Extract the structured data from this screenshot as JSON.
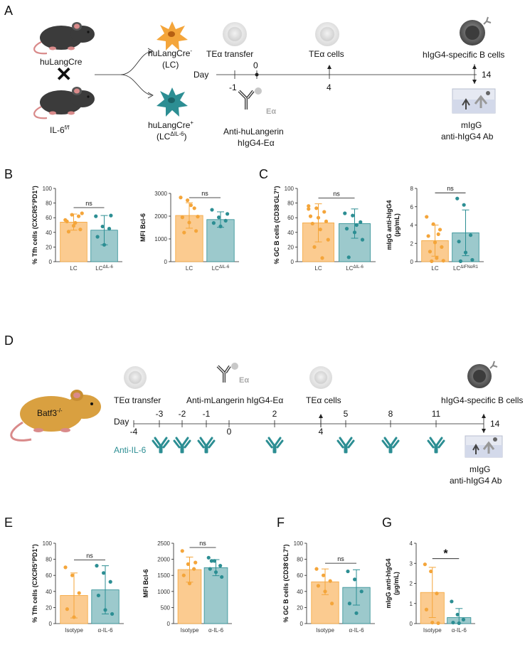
{
  "panel_labels": [
    "A",
    "B",
    "C",
    "D",
    "E",
    "F",
    "G"
  ],
  "colors": {
    "orange": "#F4A53A",
    "orange_fill": "#FBCB90",
    "teal": "#2C8E93",
    "teal_fill": "#9CC9CC",
    "mouse_black": "#3b3b3b",
    "mouse_batf3": "#D9A040",
    "mouse_tail": "#D98A8A"
  },
  "panelA": {
    "mouse1_label": "huLangCre",
    "cross_symbol": "✕",
    "mouse2_label_main": "IL-6",
    "mouse2_label_sup": "f/f",
    "lc_line1": "huLangCre",
    "lc_line1_sup": "-",
    "lc_line2": "(LC)",
    "lciko_line1": "huLangCre",
    "lciko_line1_sup": "+",
    "lciko_line2_a": "(LC",
    "lciko_line2_sup": "ΔIL-6",
    "lciko_line2_b": ")",
    "timeline": {
      "day_label": "Day",
      "events_top": [
        {
          "day": "0",
          "label": "TEα transfer"
        },
        {
          "day": "",
          "label": "TEα cells"
        },
        {
          "day": "",
          "label": "hIgG4-specific B cells"
        }
      ],
      "ticks_below": [
        "-1",
        "4"
      ],
      "tick_above_end": "0",
      "end_day": "14",
      "antibody_text": "Eα",
      "injection_label_line1": "Anti-huLangerin",
      "injection_label_line2": "hIgG4-Eα",
      "readout_line1": "mIgG",
      "readout_line2": "anti-hIgG4 Ab"
    }
  },
  "panelD": {
    "mouse_label": "Batf3",
    "mouse_label_sup": "-/-",
    "event_teα_transfer": "TEα transfer",
    "event_anti": "Anti-mLangerin hIgG4-Eα",
    "event_antibody_text": "Eα",
    "event_tea_cells": "TEα cells",
    "event_bcells": "hIgG4-specific B cells",
    "day_label": "Day",
    "days_above": [
      "-3",
      "-2",
      "-1",
      "2",
      "5",
      "8",
      "11"
    ],
    "days_below": [
      "-4",
      "0",
      "4"
    ],
    "end_day": "14",
    "anti_il6_label": "Anti-IL-6",
    "readout_line1": "mIgG",
    "readout_line2": "anti-hIgG4 Ab"
  },
  "chart_data": [
    {
      "panel": "B",
      "type": "bar",
      "categories": [
        "LC",
        "LC"
      ],
      "category_sup": [
        "",
        "ΔIL-6"
      ],
      "ylabel": "% Tfh cells (CXCR5+PD1+)",
      "ylabel_parts": [
        "% Tfh cells (CXCR5",
        "+",
        "PD1",
        "+",
        ")"
      ],
      "ylim": [
        0,
        100
      ],
      "yticks": [
        0,
        20,
        40,
        60,
        80,
        100
      ],
      "means": [
        54,
        43
      ],
      "sd": [
        11,
        20
      ],
      "points": [
        [
          57,
          64,
          62,
          55,
          49,
          44,
          41,
          53,
          66
        ],
        [
          62,
          48,
          45,
          34,
          23,
          63
        ]
      ],
      "significance": "ns"
    },
    {
      "panel": "B",
      "type": "bar",
      "categories": [
        "LC",
        "LC"
      ],
      "category_sup": [
        "",
        "ΔIL-6"
      ],
      "ylabel": "MFI Bcl-6",
      "ylim": [
        0,
        3000
      ],
      "yticks": [
        0,
        1000,
        2000,
        3000
      ],
      "means": [
        2030,
        1850
      ],
      "sd": [
        560,
        340
      ],
      "points": [
        [
          2820,
          2700,
          2350,
          1950,
          1720,
          1350,
          1280,
          2480,
          1980
        ],
        [
          2280,
          1950,
          1800,
          1700,
          1550,
          2100
        ]
      ],
      "significance": "ns"
    },
    {
      "panel": "C",
      "type": "bar",
      "categories": [
        "LC",
        "LC"
      ],
      "category_sup": [
        "",
        "ΔIL-6"
      ],
      "ylabel": "% GC B cells (CD38-GL7+)",
      "ylabel_parts": [
        "% GC B cells (CD38",
        "-",
        "GL7",
        "+",
        ")"
      ],
      "ylim": [
        0,
        100
      ],
      "yticks": [
        0,
        20,
        40,
        60,
        80,
        100
      ],
      "means": [
        53,
        52
      ],
      "sd": [
        26,
        20
      ],
      "points": [
        [
          76,
          73,
          68,
          62,
          60,
          55,
          52,
          44,
          30,
          20,
          5,
          72
        ],
        [
          66,
          63,
          54,
          45,
          40,
          30,
          6,
          50
        ]
      ],
      "significance": "ns"
    },
    {
      "panel": "C",
      "type": "bar",
      "categories": [
        "LC",
        "LC"
      ],
      "category_sup": [
        "",
        "ΔIFNαR1"
      ],
      "ylabel": "mIgG anti-hIgG4 (µg/mL)",
      "ylabel_line1": "mIgG anti-hIgG4",
      "ylabel_line2": "(µg/mL)",
      "ylim": [
        0,
        8
      ],
      "yticks": [
        0,
        2,
        4,
        6,
        8
      ],
      "means": [
        2.3,
        3.15
      ],
      "sd": [
        1.7,
        2.5
      ],
      "points": [
        [
          4.9,
          4.1,
          3.5,
          2.8,
          2.1,
          1.6,
          1.1,
          0.4,
          0.1,
          0.05,
          3.0
        ],
        [
          6.9,
          6.2,
          2.9,
          2.2,
          1.0,
          0.2,
          0.05
        ]
      ],
      "significance": "ns"
    },
    {
      "panel": "E",
      "type": "bar",
      "categories": [
        "Isotype",
        "α-IL-6"
      ],
      "ylabel": "% Tfh cells (CXCR5+PD1+)",
      "ylabel_parts": [
        "% Tfh cells (CXCR5",
        "+",
        "PD1",
        "+",
        ")"
      ],
      "ylim": [
        0,
        100
      ],
      "yticks": [
        0,
        20,
        40,
        60,
        80,
        100
      ],
      "means": [
        35,
        42
      ],
      "sd": [
        28,
        30
      ],
      "points": [
        [
          70,
          60,
          38,
          18,
          8
        ],
        [
          72,
          63,
          52,
          35,
          17,
          12
        ]
      ],
      "significance": "ns"
    },
    {
      "panel": "E",
      "type": "bar",
      "categories": [
        "Isotype",
        "α-IL-6"
      ],
      "ylabel": "MFI Bcl-6",
      "ylim": [
        0,
        2500
      ],
      "yticks": [
        0,
        500,
        1000,
        1500,
        2000,
        2500
      ],
      "means": [
        1680,
        1740
      ],
      "sd": [
        390,
        250
      ],
      "points": [
        [
          2260,
          1850,
          1700,
          1500,
          1250,
          1900
        ],
        [
          2050,
          1950,
          1800,
          1700,
          1600,
          1450,
          1950
        ]
      ],
      "significance": "ns"
    },
    {
      "panel": "F",
      "type": "bar",
      "categories": [
        "Isotype",
        "α-IL-6"
      ],
      "ylabel": "% GC B cells (CD38-GL7+)",
      "ylabel_parts": [
        "% GC B cells (CD38",
        "-",
        "GL7",
        "+",
        ")"
      ],
      "ylim": [
        0,
        100
      ],
      "yticks": [
        0,
        20,
        40,
        60,
        80,
        100
      ],
      "means": [
        52,
        45
      ],
      "sd": [
        16,
        22
      ],
      "points": [
        [
          68,
          60,
          53,
          47,
          40,
          25
        ],
        [
          65,
          55,
          40,
          25,
          13
        ]
      ],
      "significance": "ns"
    },
    {
      "panel": "G",
      "type": "bar",
      "categories": [
        "Isotype",
        "α-IL-6"
      ],
      "ylabel": "mIgG anti-hIgG4 (µg/mL)",
      "ylabel_line1": "mIgG anti-hIgG4",
      "ylabel_line2": "(µg/mL)",
      "ylim": [
        0,
        4
      ],
      "yticks": [
        0,
        1,
        2,
        3,
        4
      ],
      "means": [
        1.55,
        0.3
      ],
      "sd": [
        1.25,
        0.45
      ],
      "points": [
        [
          2.95,
          2.6,
          1.5,
          0.7,
          0.05,
          0.02
        ],
        [
          1.1,
          0.45,
          0.2,
          0.05,
          0.02
        ]
      ],
      "significance": "*"
    }
  ]
}
